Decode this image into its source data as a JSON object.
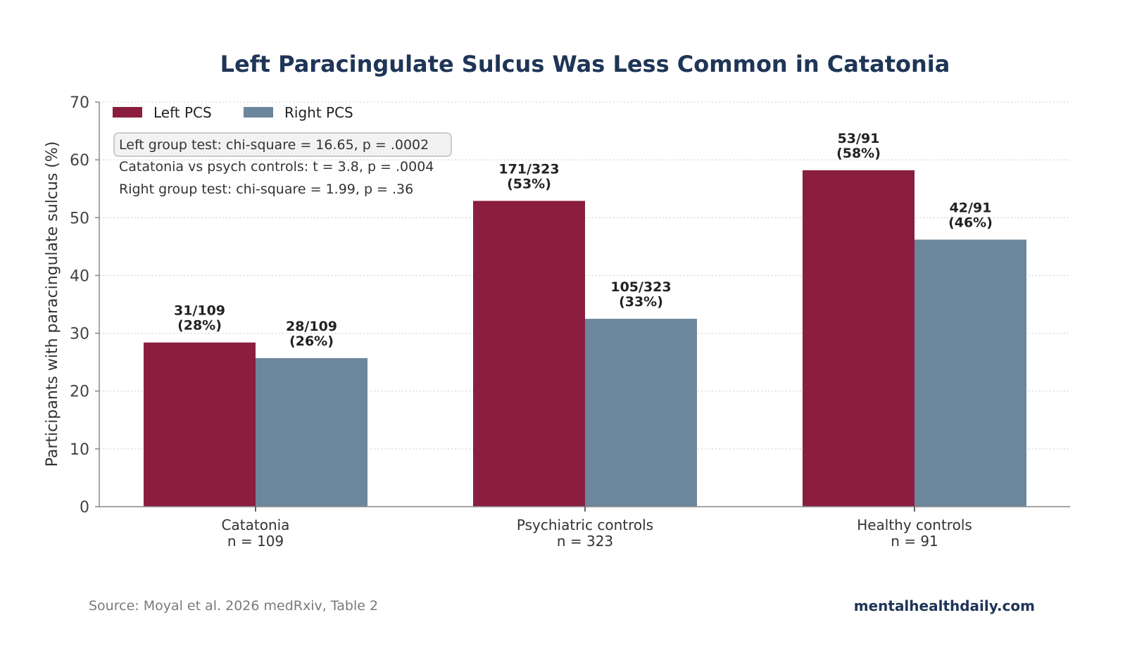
{
  "footer": {
    "source": "Source: Moyal et al. 2026 medRxiv, Table 2",
    "brand": "mentalhealthdaily.com"
  },
  "colors": {
    "left": "#8b1e3f",
    "right": "#6c869c",
    "title": "#1f3557",
    "text": "#222222",
    "axis": "#888888",
    "grid": "#cccccc"
  },
  "chart_data": {
    "type": "bar",
    "title": "Left Paracingulate Sulcus Was Less Common in Catatonia",
    "xlabel": "",
    "ylabel": "Participants with paracingulate sulcus (%)",
    "ylim": [
      0,
      70
    ],
    "yticks": [
      0,
      10,
      20,
      30,
      40,
      50,
      60,
      70
    ],
    "grid": "horizontal dotted",
    "legend_position": "top-left",
    "categories": [
      {
        "name": "Catatonia",
        "n": "n = 109"
      },
      {
        "name": "Psychiatric controls",
        "n": "n = 323"
      },
      {
        "name": "Healthy controls",
        "n": "n = 91"
      }
    ],
    "series": [
      {
        "name": "Left PCS",
        "color": "#8b1e3f",
        "values": [
          28.4,
          52.9,
          58.2
        ],
        "labels": [
          [
            "31/109",
            "(28%)"
          ],
          [
            "171/323",
            "(53%)"
          ],
          [
            "53/91",
            "(58%)"
          ]
        ]
      },
      {
        "name": "Right PCS",
        "color": "#6c869c",
        "values": [
          25.7,
          32.5,
          46.2
        ],
        "labels": [
          [
            "28/109",
            "(26%)"
          ],
          [
            "105/323",
            "(33%)"
          ],
          [
            "42/91",
            "(46%)"
          ]
        ]
      }
    ],
    "annotations": [
      "Left group test: chi-square = 16.65, p = .0002",
      "Catatonia vs psych controls: t = 3.8, p = .0004",
      "Right group test: chi-square = 1.99, p = .36"
    ]
  }
}
